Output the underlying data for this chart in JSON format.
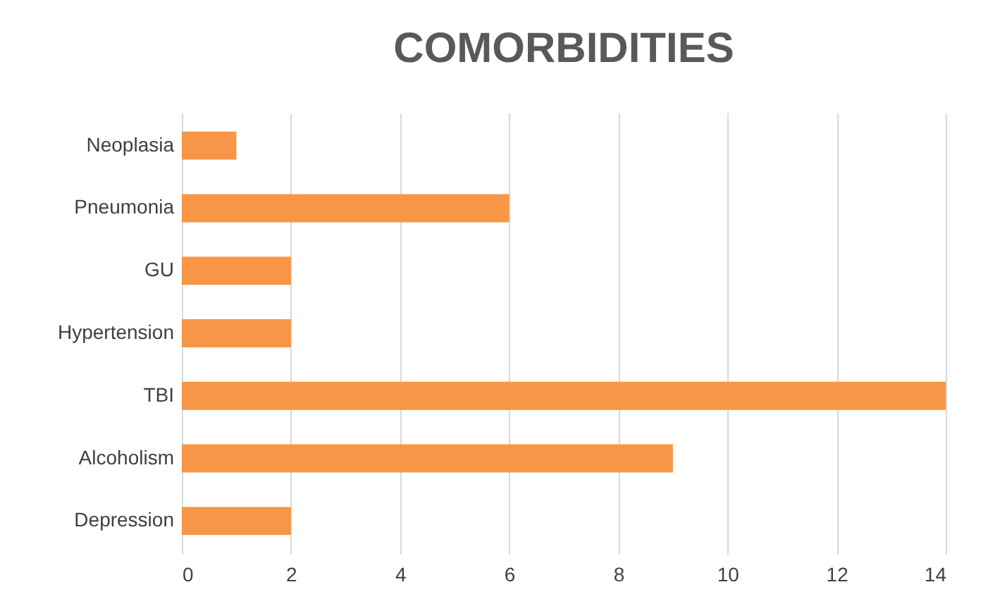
{
  "chart_data": {
    "type": "bar",
    "title": "COMORBIDITIES",
    "orientation": "horizontal",
    "categories": [
      "Neoplasia",
      "Pneumonia",
      "GU",
      "Hypertension",
      "TBI",
      "Alcoholism",
      "Depression"
    ],
    "values": [
      1,
      6,
      2,
      2,
      14,
      9,
      2
    ],
    "color": "#f79646",
    "xlim": [
      0,
      14
    ],
    "xticks": [
      0,
      2,
      4,
      6,
      8,
      10,
      12,
      14
    ],
    "grid": "x"
  }
}
